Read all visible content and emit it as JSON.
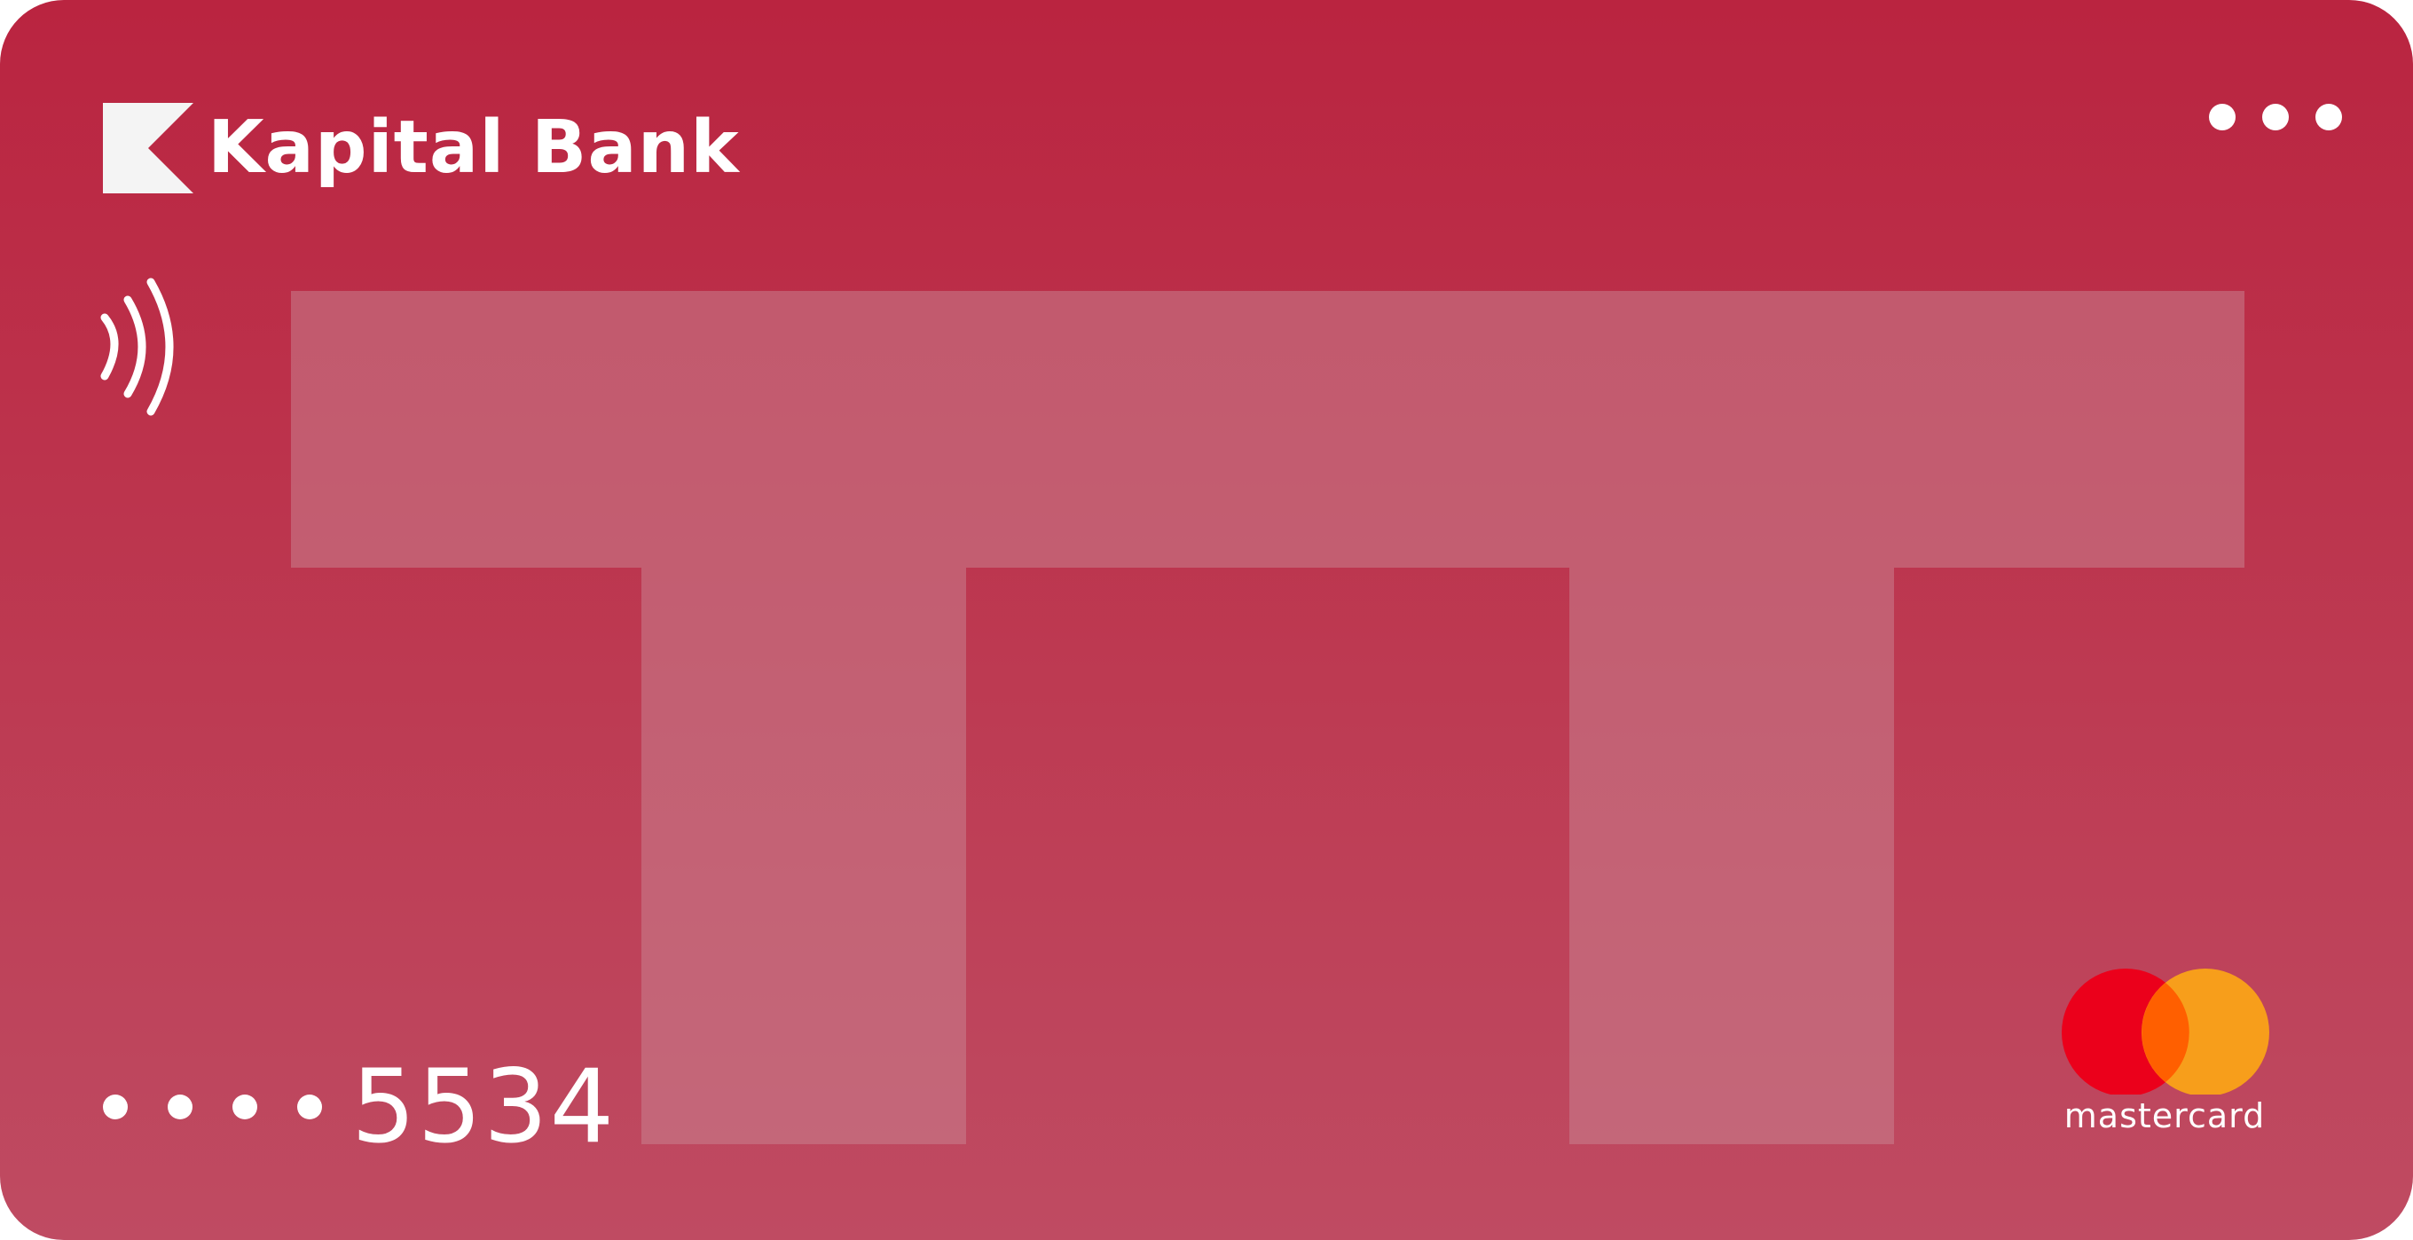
{
  "card": {
    "bank_name": "Kapital Bank",
    "number_masked_groups": 4,
    "number_last4": "5534",
    "network": "mastercard",
    "menu_icon": "more-horizontal-icon",
    "contactless_icon": "contactless-icon",
    "logo_icon": "kapital-bank-logo-icon"
  },
  "colors": {
    "card_top": "#ba2440",
    "card_bottom": "#bf4b62",
    "watermark": "#c16c7e",
    "mastercard_red": "#eb001b",
    "mastercard_orange": "#f79e1b",
    "mastercard_overlap": "#ff5f00",
    "text": "#ffffff"
  }
}
